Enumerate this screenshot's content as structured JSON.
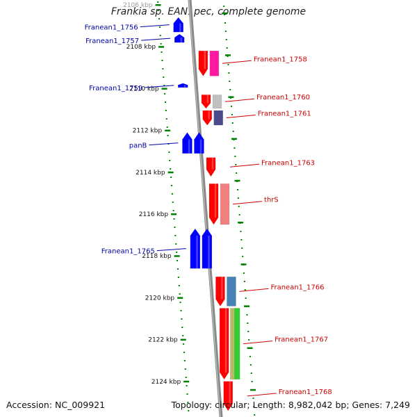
{
  "title": "Frankia sp. EAN1pec, complete genome",
  "accession": "Accession: NC_009921",
  "summary": "Topology: circular; Length: 8,982,042 bp; Genes: 7,249",
  "ticks": [
    {
      "kbp": 2106,
      "label": "2106 kbp",
      "faded": true
    },
    {
      "kbp": 2108,
      "label": "2108 kbp",
      "faded": false
    },
    {
      "kbp": 2110,
      "label": "2110 kbp",
      "faded": false
    },
    {
      "kbp": 2112,
      "label": "2112 kbp",
      "faded": false
    },
    {
      "kbp": 2114,
      "label": "2114 kbp",
      "faded": false
    },
    {
      "kbp": 2116,
      "label": "2116 kbp",
      "faded": false
    },
    {
      "kbp": 2118,
      "label": "2118 kbp",
      "faded": false
    },
    {
      "kbp": 2120,
      "label": "2120 kbp",
      "faded": false
    },
    {
      "kbp": 2122,
      "label": "2122 kbp",
      "faded": false
    },
    {
      "kbp": 2124,
      "label": "2124 kbp",
      "faded": false
    }
  ],
  "genes": [
    {
      "label": "Franean1_1756",
      "strand": "reverse",
      "start": 2106.6,
      "end": 2107.3,
      "color": "#0000ff",
      "fwd_feature_color": null
    },
    {
      "label": "Franean1_1757",
      "strand": "reverse",
      "start": 2107.4,
      "end": 2107.8,
      "color": "#0000ff",
      "fwd_feature_color": null
    },
    {
      "label": "Franean1_1758",
      "strand": "forward",
      "start": 2108.2,
      "end": 2109.4,
      "color": "#ff0000",
      "fwd_feature_color": "#ff1aa0"
    },
    {
      "label": "Franean1_1759",
      "strand": "reverse",
      "start": 2109.75,
      "end": 2109.95,
      "color": "#0000ff",
      "fwd_feature_color": null
    },
    {
      "label": "Franean1_1760",
      "strand": "forward",
      "start": 2110.3,
      "end": 2110.95,
      "color": "#ff0000",
      "fwd_feature_color": "#c0c0c0"
    },
    {
      "label": "Franean1_1761",
      "strand": "forward",
      "start": 2111.05,
      "end": 2111.75,
      "color": "#ff0000",
      "fwd_feature_color": "#4b4b8c"
    },
    {
      "label": "panB",
      "strand": "reverse",
      "start": 2112.1,
      "end": 2113.1,
      "color": "#0000ff",
      "fwd_feature_color": null
    },
    {
      "label": "Franean1_1763",
      "strand": "forward",
      "start": 2113.3,
      "end": 2114.2,
      "color": "#ff0000",
      "fwd_feature_color": null
    },
    {
      "label": "thrS",
      "strand": "forward",
      "start": 2114.55,
      "end": 2116.5,
      "color": "#ff0000",
      "fwd_feature_color": "#f08080"
    },
    {
      "label": "Franean1_1765",
      "strand": "reverse",
      "start": 2116.7,
      "end": 2118.6,
      "color": "#0000ff",
      "fwd_feature_color": null
    },
    {
      "label": "Franean1_1766",
      "strand": "forward",
      "start": 2119.0,
      "end": 2120.4,
      "color": "#ff0000",
      "fwd_feature_color": "#4682b4"
    },
    {
      "label": "Franean1_1767",
      "strand": "forward",
      "start": 2120.5,
      "end": 2123.9,
      "color": "#ff0000",
      "fwd_feature_color": "#32cd32"
    },
    {
      "label": "Franean1_1768",
      "strand": "forward",
      "start": 2124.0,
      "end": 2125.4,
      "color": "#ff0000",
      "fwd_feature_color": null
    }
  ],
  "colors": {
    "backbone": "#8a8a8a",
    "tick": "#008000",
    "reverse_label": "#0000aa",
    "forward_label": "#cc0000",
    "tick_text": "#111111"
  }
}
